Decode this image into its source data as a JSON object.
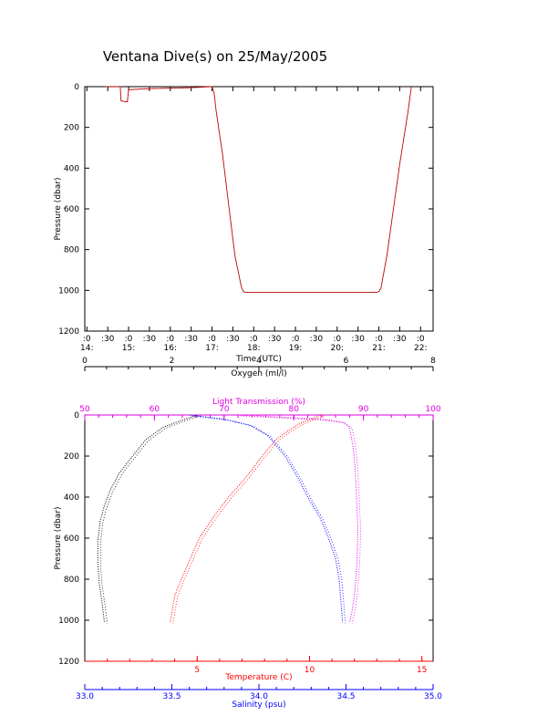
{
  "title": "Ventana Dive(s) on 25/May/2005",
  "chart_data": [
    {
      "type": "line",
      "xlabel": "Time (UTC)",
      "ylabel": "Pressure (dbar)",
      "xlim": [
        13.95,
        22.3
      ],
      "ylim": [
        1200,
        0
      ],
      "x_ticks_top": [
        ":0",
        ":30",
        ":0",
        ":30",
        ":0",
        ":30",
        ":0",
        ":30",
        ":0",
        ":30",
        ":0",
        ":30",
        ":0",
        ":30",
        ":0",
        ":30",
        ":0"
      ],
      "x_ticks_bottom": [
        "14:",
        "15:",
        "16:",
        "17:",
        "18:",
        "19:",
        "20:",
        "21:",
        "22:"
      ],
      "y_ticks": [
        "0",
        "200",
        "400",
        "600",
        "800",
        "1000",
        "1200"
      ],
      "series": [
        {
          "color": "#ff0000",
          "x": [
            14.45,
            14.7,
            14.8,
            14.82,
            14.97,
            15.0,
            15.5,
            16.5,
            17.0,
            17.05,
            17.1,
            17.25,
            17.4,
            17.55,
            17.7,
            17.75,
            17.8,
            18.5,
            19.5,
            20.5,
            20.95,
            21.0,
            21.05,
            21.2,
            21.35,
            21.5,
            21.6,
            21.7,
            21.78
          ],
          "y": [
            0,
            0,
            0,
            70,
            75,
            15,
            10,
            5,
            0,
            30,
            120,
            330,
            580,
            830,
            980,
            1005,
            1010,
            1010,
            1010,
            1010,
            1010,
            1005,
            990,
            820,
            600,
            380,
            250,
            120,
            0
          ]
        }
      ]
    },
    {
      "type": "scatter",
      "ylabel": "Pressure (dbar)",
      "ylim": [
        1200,
        0
      ],
      "y_ticks": [
        "0",
        "200",
        "400",
        "600",
        "800",
        "1000",
        "1200"
      ],
      "axes": [
        {
          "label": "Oxygen (ml/l)",
          "color": "#000000",
          "range": [
            0,
            8
          ],
          "ticks": [
            "0",
            "2",
            "4",
            "6",
            "8"
          ]
        },
        {
          "label": "Light Transmission (%)",
          "color": "#e000e0",
          "range": [
            50,
            100
          ],
          "ticks": [
            "50",
            "60",
            "70",
            "80",
            "90",
            "100"
          ]
        },
        {
          "label": "Temperature (C)",
          "color": "#ff0000",
          "range": [
            0,
            15.5
          ],
          "ticks": [
            "5",
            "10",
            "15"
          ]
        },
        {
          "label": "Salinity (psu)",
          "color": "#0000ff",
          "range": [
            33.0,
            35.0
          ],
          "ticks": [
            "33.0",
            "33.5",
            "34.0",
            "34.5",
            "35.0"
          ]
        }
      ],
      "series": [
        {
          "color": "#000000",
          "x": [
            2.6,
            2.3,
            1.8,
            1.4,
            1.1,
            0.8,
            0.6,
            0.45,
            0.35,
            0.3,
            0.3,
            0.33,
            0.4,
            0.45
          ],
          "y": [
            0,
            20,
            60,
            120,
            200,
            280,
            360,
            440,
            520,
            620,
            720,
            820,
            920,
            1010
          ]
        },
        {
          "color": "#e000e0",
          "x": [
            72,
            78,
            84,
            87,
            88,
            88.5,
            88.8,
            89,
            89.2,
            89.1,
            88.8,
            88.4,
            88.0
          ],
          "y": [
            0,
            10,
            20,
            35,
            60,
            150,
            250,
            400,
            550,
            700,
            850,
            950,
            1010
          ]
        },
        {
          "color": "#ff0000",
          "x": [
            10.5,
            9.6,
            9.0,
            8.5,
            7.9,
            7.2,
            6.4,
            5.7,
            5.1,
            4.7,
            4.3,
            4.0,
            3.9,
            3.8
          ],
          "y": [
            0,
            40,
            80,
            120,
            200,
            300,
            400,
            500,
            600,
            700,
            800,
            880,
            950,
            1010
          ]
        },
        {
          "color": "#0000ff",
          "x": [
            33.6,
            33.8,
            33.95,
            34.05,
            34.15,
            34.22,
            34.28,
            34.35,
            34.4,
            34.44,
            34.46,
            34.47,
            34.48
          ],
          "y": [
            0,
            20,
            50,
            100,
            200,
            300,
            400,
            500,
            600,
            700,
            800,
            900,
            1010
          ]
        }
      ]
    }
  ]
}
